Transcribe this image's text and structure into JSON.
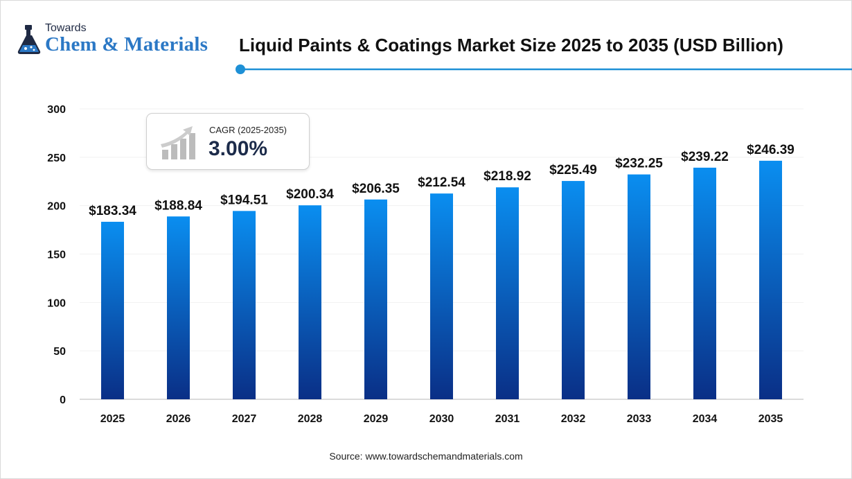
{
  "logo": {
    "line1": "Towards",
    "line2": "Chem & Materials"
  },
  "title": "Liquid Paints & Coatings Market Size 2025 to 2035 (USD Billion)",
  "cagr": {
    "label": "CAGR (2025-2035)",
    "value": "3.00%"
  },
  "source": "Source: www.towardschemandmaterials.com",
  "colors": {
    "bar_top": "#0a8ef0",
    "bar_bottom": "#0a2f86",
    "title_rule": "#1e90d6",
    "logo_blue": "#2b78c5"
  },
  "chart_data": {
    "type": "bar",
    "title": "Liquid Paints & Coatings Market Size 2025 to 2035 (USD Billion)",
    "xlabel": "",
    "ylabel": "",
    "categories": [
      "2025",
      "2026",
      "2027",
      "2028",
      "2029",
      "2030",
      "2031",
      "2032",
      "2033",
      "2034",
      "2035"
    ],
    "values": [
      183.34,
      188.84,
      194.51,
      200.34,
      206.35,
      212.54,
      218.92,
      225.49,
      232.25,
      239.22,
      246.39
    ],
    "data_labels": [
      "$183.34",
      "$188.84",
      "$194.51",
      "$200.34",
      "$206.35",
      "$212.54",
      "$218.92",
      "$225.49",
      "$232.25",
      "$239.22",
      "$246.39"
    ],
    "yticks": [
      "0",
      "50",
      "100",
      "150",
      "200",
      "250",
      "300"
    ],
    "ylim": [
      0,
      300
    ],
    "grid": true,
    "legend": "none"
  }
}
